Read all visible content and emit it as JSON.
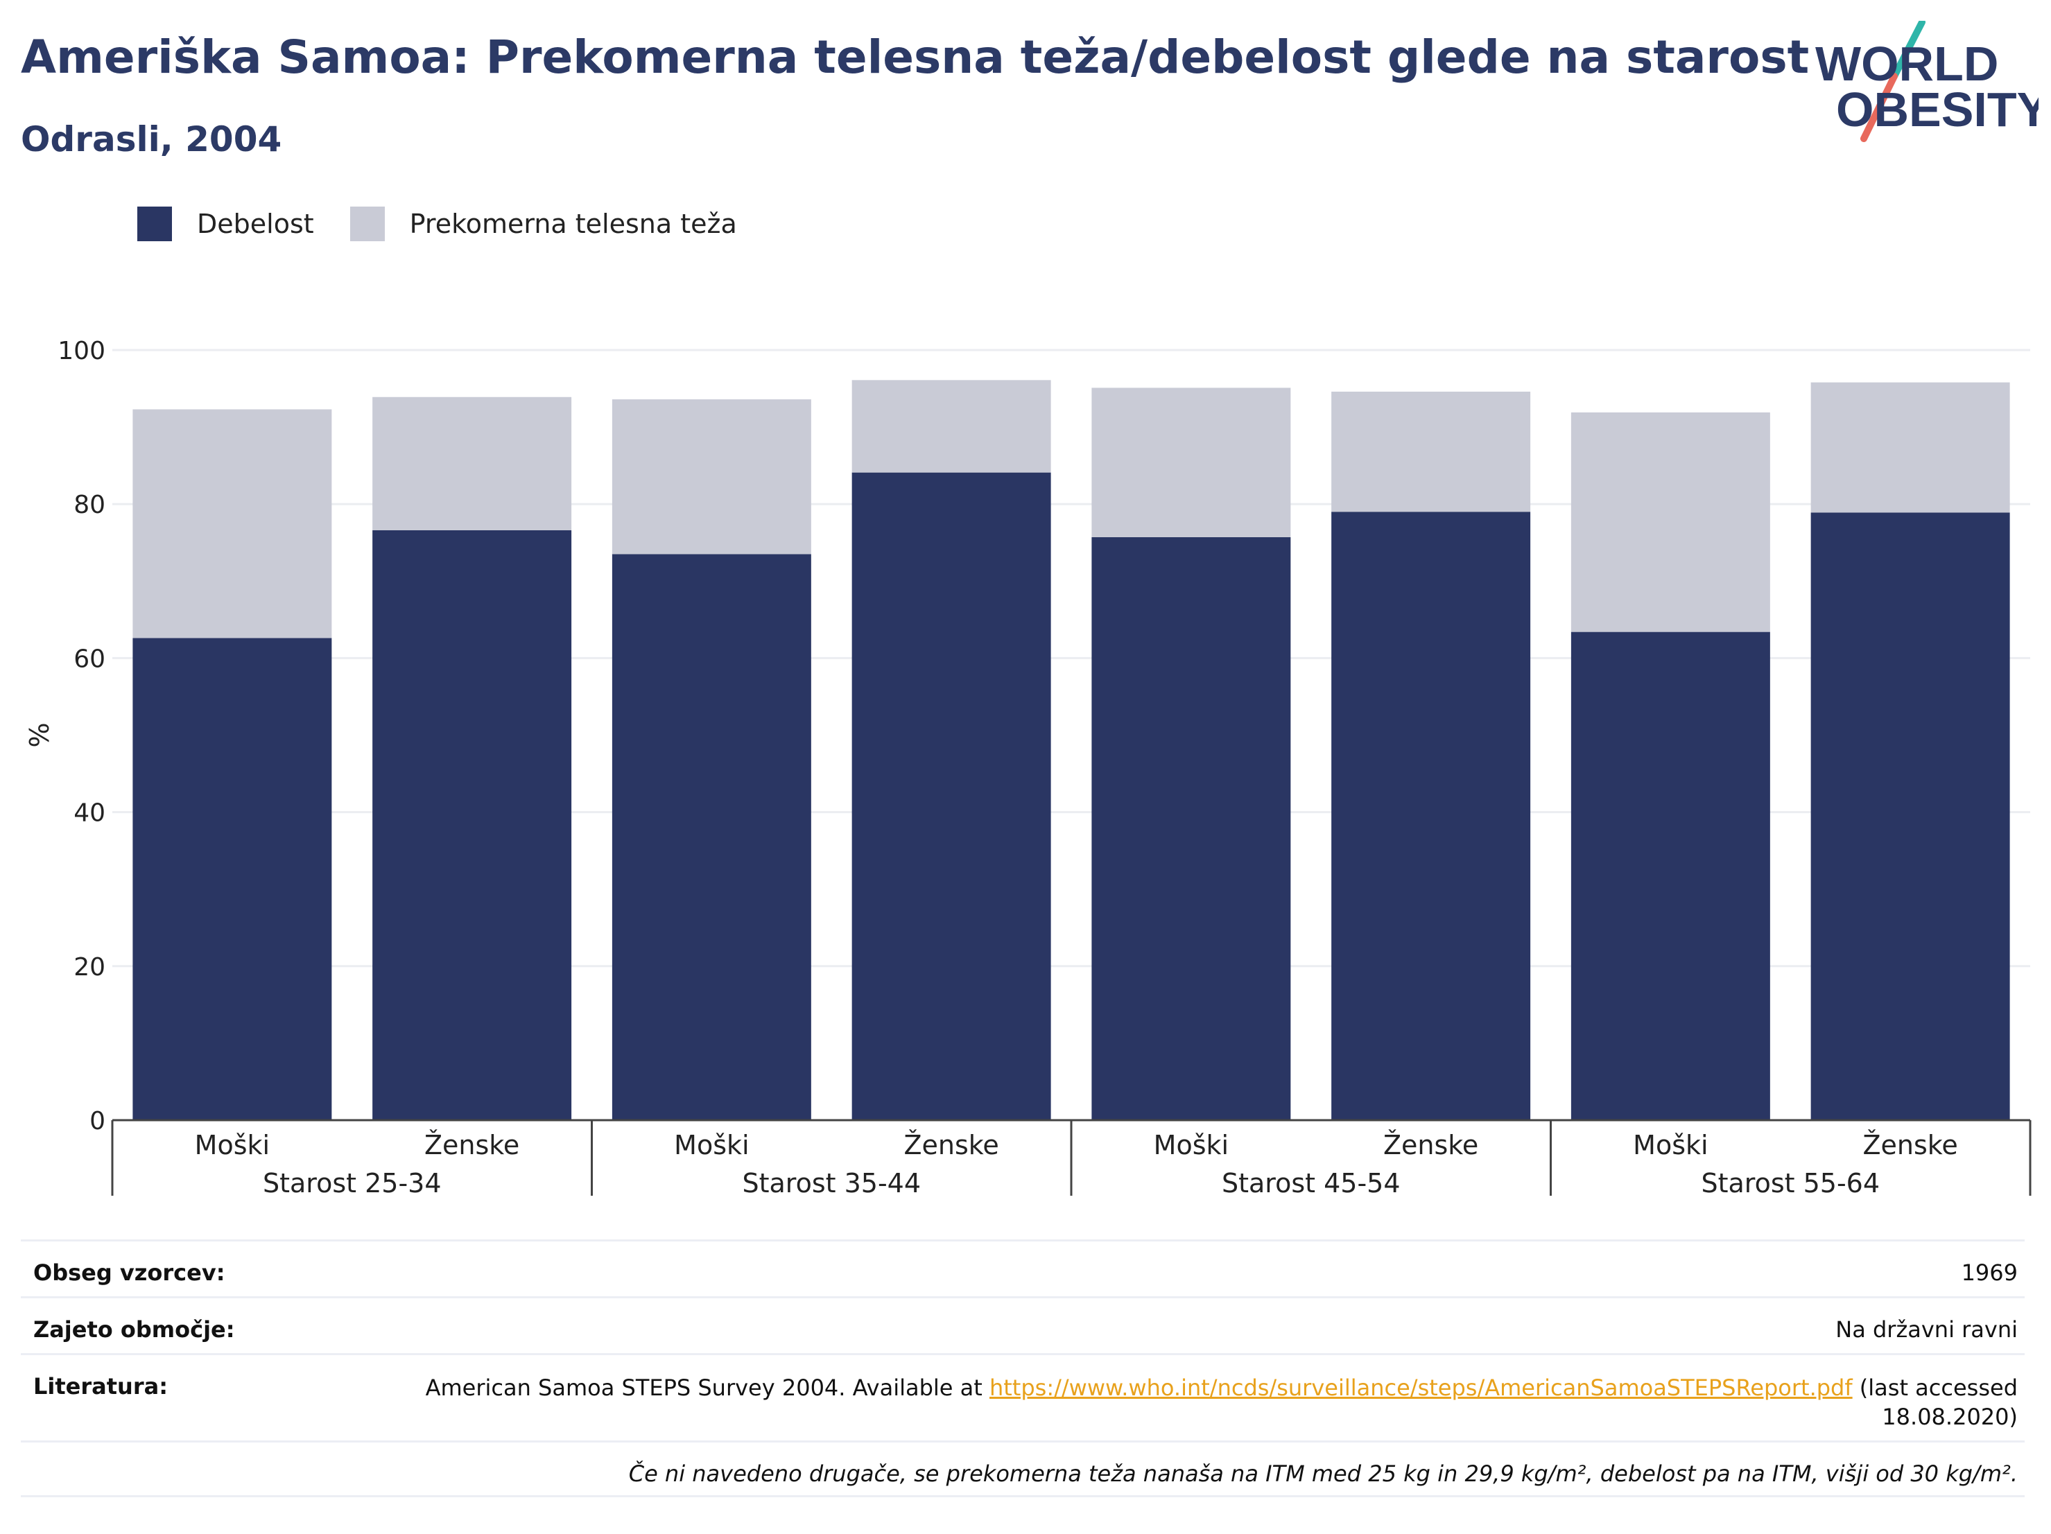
{
  "header": {
    "title": "Ameriška Samoa: Prekomerna telesna teža/debelost glede na starost",
    "subtitle": "Odrasli, 2004"
  },
  "logo": {
    "line1": "WORLD",
    "line2": "OBESITY"
  },
  "colors": {
    "obesity": "#2a3663",
    "overweight": "#c9cbd6",
    "text": "#2c3a66",
    "link": "#e8a11c"
  },
  "chart_data": {
    "type": "bar",
    "stacked": true,
    "groups": [
      "Starost 25-34",
      "Starost 35-44",
      "Starost 45-54",
      "Starost 55-64"
    ],
    "categories": [
      "Moški",
      "Ženske",
      "Moški",
      "Ženske",
      "Moški",
      "Ženske",
      "Moški",
      "Ženske"
    ],
    "series": [
      {
        "name": "Debelost",
        "values": [
          62.6,
          76.6,
          73.5,
          84.1,
          75.7,
          79.0,
          63.4,
          78.9
        ]
      },
      {
        "name": "Prekomerna telesna teža",
        "values": [
          29.7,
          17.3,
          20.1,
          12.0,
          19.4,
          15.6,
          28.5,
          16.9
        ]
      }
    ],
    "ylabel": "%",
    "ylim": [
      0,
      100
    ],
    "yticks": [
      0,
      20,
      40,
      60,
      80,
      100
    ],
    "grid": true,
    "legend": "top-left"
  },
  "info": {
    "sample_label": "Obseg vzorcev:",
    "sample_value": "1969",
    "coverage_label": "Zajeto območje:",
    "coverage_value": "Na državni ravni",
    "ref_label": "Literatura:",
    "ref_prefix": "American Samoa STEPS Survey 2004. Available at",
    "ref_link": "https://www.who.int/ncds/surveillance/steps/AmericanSamoaSTEPSReport.pdf",
    "ref_suffix": "(last accessed 18.08.2020)",
    "note": "Če ni navedeno drugače, se prekomerna teža nanaša na ITM med 25 kg in 29,9 kg/m², debelost pa na ITM, višji od 30 kg/m²."
  }
}
